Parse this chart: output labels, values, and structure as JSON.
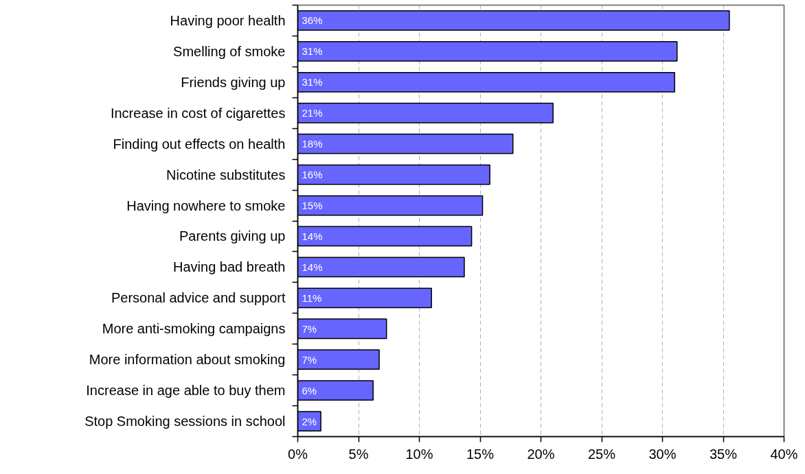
{
  "chart_data": {
    "type": "bar",
    "orientation": "horizontal",
    "categories": [
      "Having poor health",
      "Smelling of smoke",
      "Friends giving up",
      "Increase in cost of cigarettes",
      "Finding out effects on health",
      "Nicotine substitutes",
      "Having nowhere to smoke",
      "Parents giving up",
      "Having bad breath",
      "Personal advice and support",
      "More anti-smoking campaigns",
      "More information about smoking",
      "Increase in age able to buy them",
      "Stop Smoking sessions in school"
    ],
    "values": [
      35.5,
      31.2,
      31.0,
      21.0,
      17.7,
      15.8,
      15.2,
      14.3,
      13.7,
      11.0,
      7.3,
      6.7,
      6.2,
      1.9
    ],
    "value_labels": [
      "36%",
      "31%",
      "31%",
      "21%",
      "18%",
      "16%",
      "15%",
      "14%",
      "14%",
      "11%",
      "7%",
      "7%",
      "6%",
      "2%"
    ],
    "color": "#6666ff",
    "xlim": [
      0,
      40
    ],
    "xticks": [
      {
        "value": 0,
        "label": "0%"
      },
      {
        "value": 5,
        "label": "5%"
      },
      {
        "value": 10,
        "label": "10%"
      },
      {
        "value": 15,
        "label": "15%"
      },
      {
        "value": 20,
        "label": "20%"
      },
      {
        "value": 25,
        "label": "25%"
      },
      {
        "value": 30,
        "label": "30%"
      },
      {
        "value": 35,
        "label": "35%"
      },
      {
        "value": 40,
        "label": "40%"
      }
    ],
    "grid": "x"
  }
}
